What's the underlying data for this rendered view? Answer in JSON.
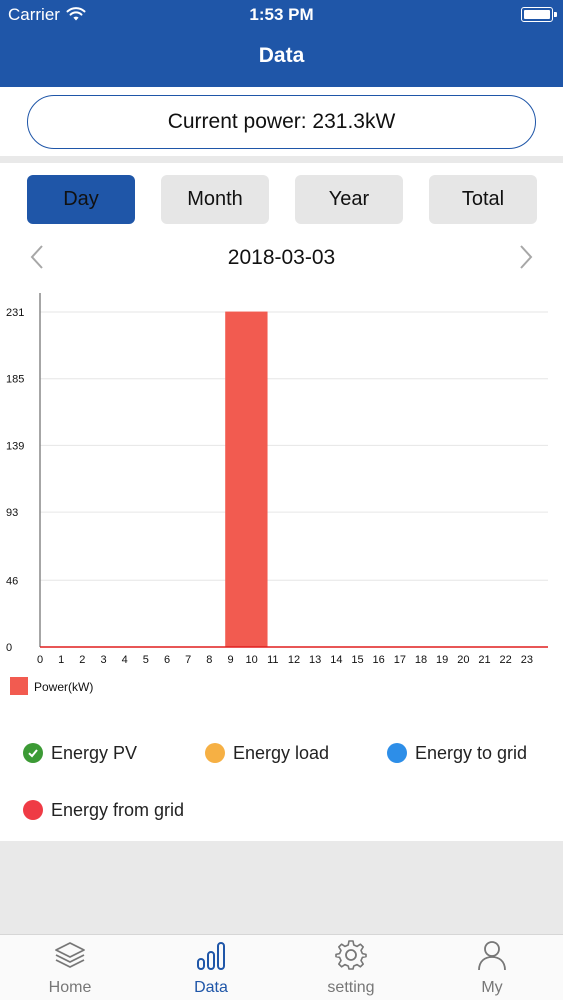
{
  "status_bar": {
    "carrier": "Carrier",
    "time": "1:53 PM"
  },
  "nav": {
    "title": "Data"
  },
  "current_power": {
    "label": "Current power: 231.3kW"
  },
  "period_tabs": [
    {
      "label": "Day",
      "active": true
    },
    {
      "label": "Month",
      "active": false
    },
    {
      "label": "Year",
      "active": false
    },
    {
      "label": "Total",
      "active": false
    }
  ],
  "date_nav": {
    "date": "2018-03-03"
  },
  "chart_data": {
    "type": "bar",
    "x": [
      0,
      1,
      2,
      3,
      4,
      5,
      6,
      7,
      8,
      9,
      10,
      11,
      12,
      13,
      14,
      15,
      16,
      17,
      18,
      19,
      20,
      21,
      22,
      23
    ],
    "yticks": [
      "0",
      "46",
      "93",
      "139",
      "185",
      "231"
    ],
    "ylim": [
      0,
      231
    ],
    "grid": true,
    "series": [
      {
        "name": "Power(kW)",
        "color": "#f25b50",
        "values": [
          0,
          0,
          0,
          0,
          0,
          0,
          0,
          0,
          0,
          231.3,
          231.3,
          0,
          0,
          0,
          0,
          0,
          0,
          0,
          0,
          0,
          0,
          0,
          0,
          0
        ]
      }
    ],
    "legend": {
      "position": "bottom-left",
      "label": "Power(kW)"
    }
  },
  "energy_legend": [
    {
      "label": "Energy PV",
      "color": "#3c9a35",
      "icon": "check-circle-icon"
    },
    {
      "label": "Energy load",
      "color": "#f6b044",
      "icon": "circle-icon"
    },
    {
      "label": "Energy to grid",
      "color": "#2d8ee8",
      "icon": "circle-icon"
    },
    {
      "label": "Energy from grid",
      "color": "#ef3b45",
      "icon": "circle-icon"
    }
  ],
  "tabbar": [
    {
      "label": "Home",
      "icon": "layers-icon",
      "active": false
    },
    {
      "label": "Data",
      "icon": "bar-chart-icon",
      "active": true
    },
    {
      "label": "setting",
      "icon": "gear-icon",
      "active": false
    },
    {
      "label": "My",
      "icon": "person-icon",
      "active": false
    }
  ],
  "colors": {
    "brand": "#1f56a8",
    "bar": "#f25b50",
    "axis_line": "#e01e1e"
  }
}
